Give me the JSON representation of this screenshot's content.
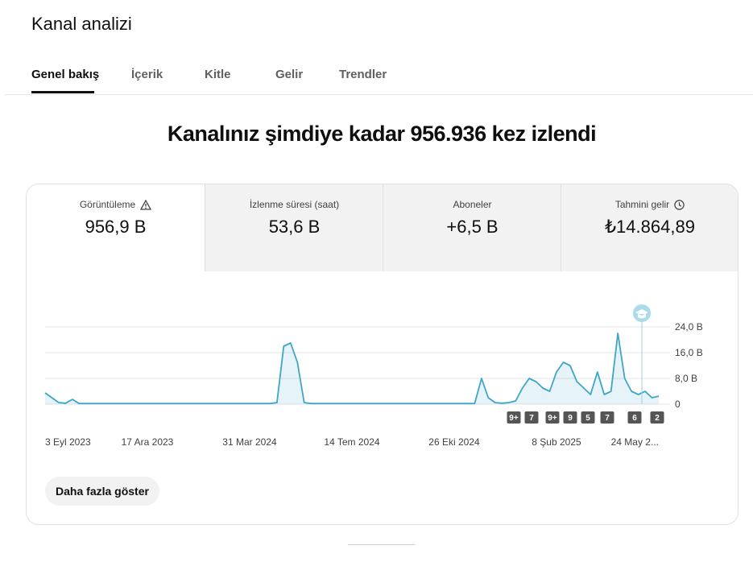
{
  "header": {
    "title": "Kanal analizi"
  },
  "tabs": [
    "Genel bakış",
    "İçerik",
    "Kitle",
    "Gelir",
    "Trendler"
  ],
  "headline": "Kanalınız şimdiye kadar 956.936 kez izlendi",
  "metrics": [
    {
      "label": "Görüntüleme",
      "value": "956,9 B"
    },
    {
      "label": "İzlenme süresi (saat)",
      "value": "53,6 B"
    },
    {
      "label": "Aboneler",
      "value": "+6,5 B"
    },
    {
      "label": "Tahmini gelir",
      "value": "₺14.864,89"
    }
  ],
  "button": "Daha fazla göster",
  "chart_data": {
    "type": "line",
    "categories": [
      "3 Eyl 2023",
      null,
      null,
      null,
      null,
      null,
      null,
      null,
      null,
      null,
      null,
      null,
      null,
      null,
      null,
      "17 Ara 2023",
      null,
      null,
      null,
      null,
      null,
      null,
      null,
      null,
      null,
      null,
      null,
      null,
      null,
      null,
      "31 Mar 2024",
      null,
      null,
      null,
      null,
      null,
      null,
      null,
      null,
      null,
      null,
      null,
      null,
      null,
      null,
      "14 Tem 2024",
      null,
      null,
      null,
      null,
      null,
      null,
      null,
      null,
      null,
      null,
      null,
      null,
      null,
      null,
      "26 Eki 2024",
      null,
      null,
      null,
      null,
      null,
      null,
      null,
      null,
      null,
      null,
      null,
      null,
      null,
      null,
      "8 Şub 2025",
      null,
      null,
      null,
      null,
      null,
      null,
      null,
      null,
      null,
      null,
      null,
      null,
      null,
      null,
      "24 May 2..."
    ],
    "series": [
      {
        "color": "#3ea6c7",
        "values": [
          3.5,
          2,
          0.5,
          0.3,
          1.5,
          0.2,
          0.2,
          0.2,
          0.2,
          0.2,
          0.2,
          0.2,
          0.2,
          0.2,
          0.2,
          0.2,
          0.2,
          0.2,
          0.2,
          0.2,
          0.2,
          0.2,
          0.2,
          0.2,
          0.2,
          0.2,
          0.2,
          0.2,
          0.2,
          0.2,
          0.2,
          0.2,
          0.2,
          0.2,
          0.5,
          18,
          19,
          13,
          0.5,
          0.2,
          0.2,
          0.2,
          0.2,
          0.2,
          0.2,
          0.2,
          0.2,
          0.2,
          0.2,
          0.2,
          0.2,
          0.2,
          0.2,
          0.2,
          0.2,
          0.2,
          0.2,
          0.2,
          0.2,
          0.2,
          0.2,
          0.2,
          0.2,
          0.2,
          8,
          2,
          0.5,
          0.3,
          0.5,
          1,
          5,
          8,
          7,
          5,
          4,
          10,
          13,
          12,
          7,
          5,
          3,
          10,
          3,
          4,
          22,
          8,
          4,
          3,
          4,
          2,
          2.5
        ]
      }
    ],
    "ylim": [
      0,
      24
    ],
    "yticks": [
      {
        "value": 24,
        "label": "24,0 B"
      },
      {
        "value": 16,
        "label": "16,0 B"
      },
      {
        "value": 8,
        "label": "8,0 B"
      },
      0
    ],
    "grid": true,
    "markers": [
      "9+",
      "7",
      "9+",
      "9",
      "5",
      "7",
      "6",
      "2"
    ]
  }
}
